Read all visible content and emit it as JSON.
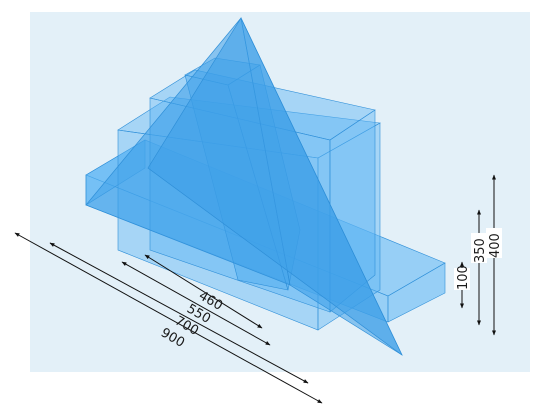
{
  "colors": {
    "background_panel": "#e3f0f8",
    "solid_fill": "#5ab4f4",
    "solid_edge": "#2f8fd8",
    "dimension_line": "#111111"
  },
  "dimensions": {
    "length_460": "460",
    "length_550": "550",
    "length_700": "700",
    "length_900": "900",
    "height_100": "100",
    "height_350": "350",
    "height_400": "400"
  }
}
